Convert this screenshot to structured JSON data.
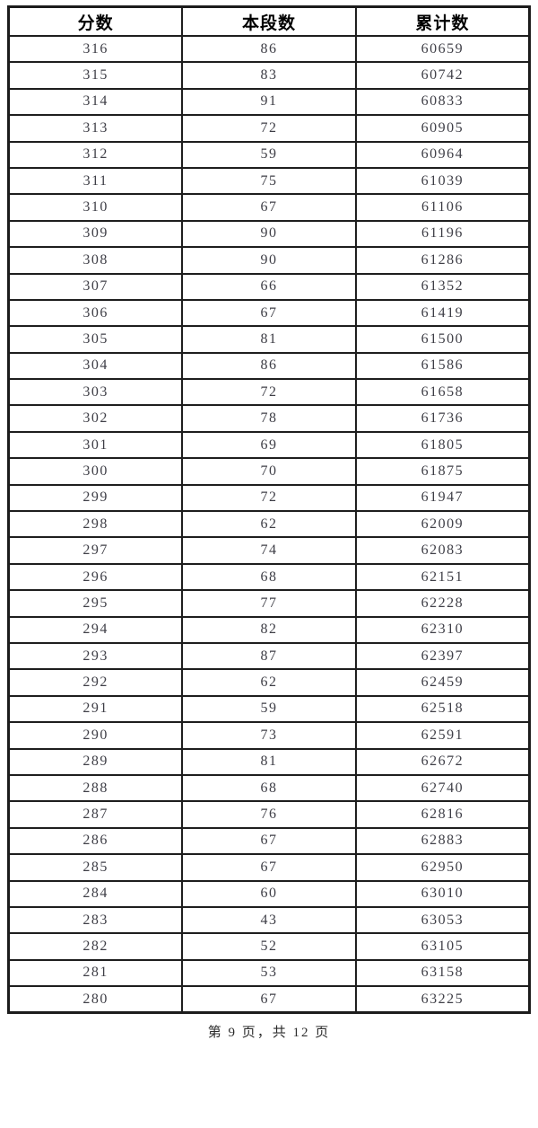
{
  "table": {
    "columns": [
      "分数",
      "本段数",
      "累计数"
    ],
    "column_names": [
      "score",
      "segment-count",
      "cumulative-count"
    ],
    "rows": [
      [
        316,
        86,
        60659
      ],
      [
        315,
        83,
        60742
      ],
      [
        314,
        91,
        60833
      ],
      [
        313,
        72,
        60905
      ],
      [
        312,
        59,
        60964
      ],
      [
        311,
        75,
        61039
      ],
      [
        310,
        67,
        61106
      ],
      [
        309,
        90,
        61196
      ],
      [
        308,
        90,
        61286
      ],
      [
        307,
        66,
        61352
      ],
      [
        306,
        67,
        61419
      ],
      [
        305,
        81,
        61500
      ],
      [
        304,
        86,
        61586
      ],
      [
        303,
        72,
        61658
      ],
      [
        302,
        78,
        61736
      ],
      [
        301,
        69,
        61805
      ],
      [
        300,
        70,
        61875
      ],
      [
        299,
        72,
        61947
      ],
      [
        298,
        62,
        62009
      ],
      [
        297,
        74,
        62083
      ],
      [
        296,
        68,
        62151
      ],
      [
        295,
        77,
        62228
      ],
      [
        294,
        82,
        62310
      ],
      [
        293,
        87,
        62397
      ],
      [
        292,
        62,
        62459
      ],
      [
        291,
        59,
        62518
      ],
      [
        290,
        73,
        62591
      ],
      [
        289,
        81,
        62672
      ],
      [
        288,
        68,
        62740
      ],
      [
        287,
        76,
        62816
      ],
      [
        286,
        67,
        62883
      ],
      [
        285,
        67,
        62950
      ],
      [
        284,
        60,
        63010
      ],
      [
        283,
        43,
        63053
      ],
      [
        282,
        52,
        63105
      ],
      [
        281,
        53,
        63158
      ],
      [
        280,
        67,
        63225
      ]
    ]
  },
  "footer": {
    "page_text": "第 9 页，共 12 页",
    "current_page": "9",
    "total_pages": "12"
  },
  "colors": {
    "background": "#ffffff",
    "border": "#1e1e1e",
    "header_text": "#000000",
    "cell_text": "#3e3e46"
  }
}
